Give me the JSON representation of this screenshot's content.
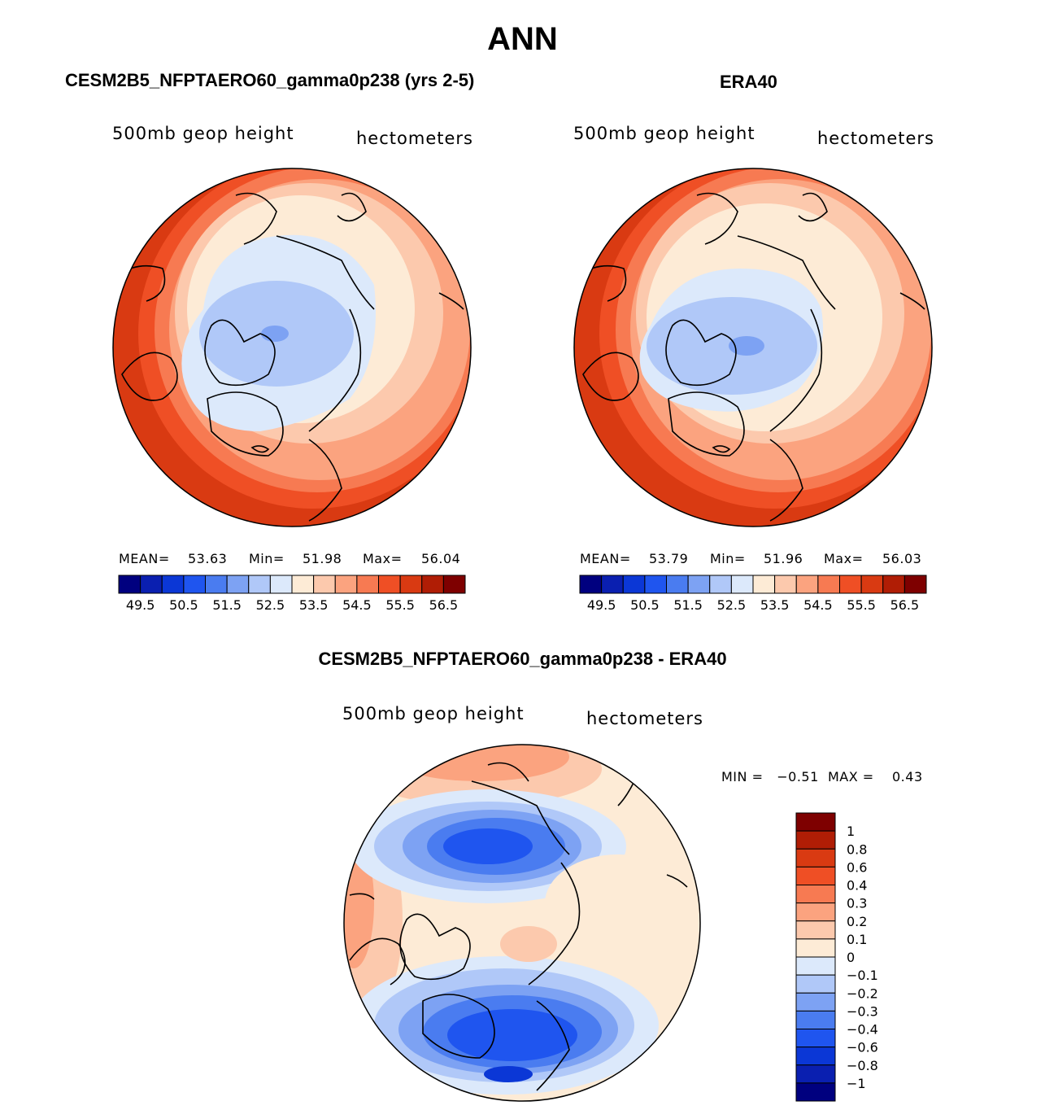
{
  "title": "ANN",
  "panels": [
    {
      "id": "model",
      "header": "CESM2B5_NFPTAERO60_gamma0p238 (yrs 2-5)",
      "left_label": "500mb  geop  height",
      "right_label": "hectometers",
      "stats": {
        "mean_label": "MEAN=",
        "mean": "53.63",
        "min_label": "Min=",
        "min": "51.98",
        "max_label": "Max=",
        "max": "56.04"
      }
    },
    {
      "id": "obs",
      "header": "ERA40",
      "left_label": "500mb  geop  height",
      "right_label": "hectometers",
      "stats": {
        "mean_label": "MEAN=",
        "mean": "53.79",
        "min_label": "Min=",
        "min": "51.96",
        "max_label": "Max=",
        "max": "56.03"
      }
    }
  ],
  "colorbar_top": {
    "colors": [
      "#00007f",
      "#0a1fb0",
      "#0b37d6",
      "#1f55ef",
      "#4a7cf0",
      "#7da2f3",
      "#b0c8f8",
      "#dce9fb",
      "#fdebd6",
      "#fcc9ad",
      "#fba37f",
      "#f77a52",
      "#ef4f25",
      "#d93a12",
      "#b01d05",
      "#7e0000"
    ],
    "tick_labels": [
      "49.5",
      "50.5",
      "51.5",
      "52.5",
      "53.5",
      "54.5",
      "55.5",
      "56.5"
    ]
  },
  "difference": {
    "header": "CESM2B5_NFPTAERO60_gamma0p238 - ERA40",
    "left_label": "500mb  geop  height",
    "right_label": "hectometers",
    "stats_line": "MIN =   −0.51  MAX =    0.43",
    "colorbar_labels": [
      "1",
      "0.8",
      "0.6",
      "0.4",
      "0.3",
      "0.2",
      "0.1",
      "0",
      "−0.1",
      "−0.2",
      "−0.3",
      "−0.4",
      "−0.6",
      "−0.8",
      "−1"
    ],
    "colorbar_colors": [
      "#7e0000",
      "#b01d05",
      "#d93a12",
      "#ef4f25",
      "#f77a52",
      "#fba37f",
      "#fcc9ad",
      "#fdebd6",
      "#dce9fb",
      "#b0c8f8",
      "#7da2f3",
      "#4a7cf0",
      "#1f55ef",
      "#0b37d6",
      "#0a1fb0",
      "#00007f"
    ]
  },
  "chart_data": [
    {
      "type": "heatmap",
      "title": "CESM2B5_NFPTAERO60_gamma0p238 (yrs 2-5)",
      "variable": "500mb geop height",
      "units": "hectometers",
      "mean": 53.63,
      "min": 51.98,
      "max": 56.04,
      "levels": [
        49.5,
        50.5,
        51.5,
        52.5,
        53.5,
        54.5,
        55.5,
        56.5
      ]
    },
    {
      "type": "heatmap",
      "title": "ERA40",
      "variable": "500mb geop height",
      "units": "hectometers",
      "mean": 53.79,
      "min": 51.96,
      "max": 56.03,
      "levels": [
        49.5,
        50.5,
        51.5,
        52.5,
        53.5,
        54.5,
        55.5,
        56.5
      ]
    },
    {
      "type": "heatmap",
      "title": "CESM2B5_NFPTAERO60_gamma0p238 - ERA40",
      "variable": "500mb geop height",
      "units": "hectometers",
      "min": -0.51,
      "max": 0.43,
      "levels": [
        -1,
        -0.8,
        -0.6,
        -0.4,
        -0.3,
        -0.2,
        -0.1,
        0,
        0.1,
        0.2,
        0.3,
        0.4,
        0.6,
        0.8,
        1
      ]
    }
  ]
}
